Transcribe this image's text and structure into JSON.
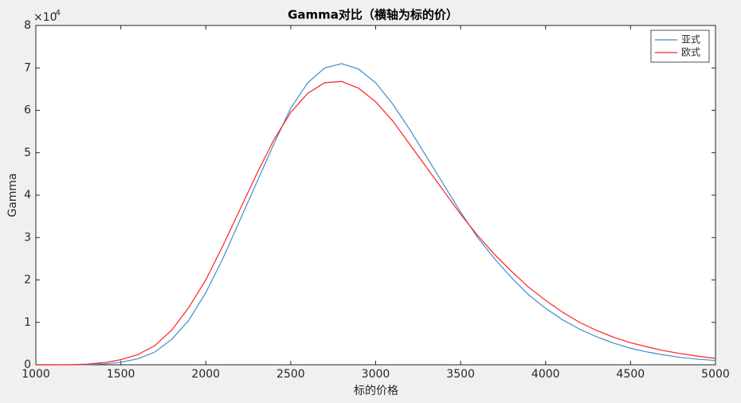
{
  "chart_data": {
    "type": "line",
    "title": "Gamma对比（横轴为标的价）",
    "x_label": "标的价格",
    "y_label": "Gamma",
    "y_exponent_base": "×10",
    "y_exponent_power": "-4",
    "x": [
      1000,
      1100,
      1200,
      1300,
      1400,
      1500,
      1600,
      1700,
      1800,
      1900,
      2000,
      2100,
      2200,
      2300,
      2400,
      2500,
      2600,
      2700,
      2800,
      2900,
      3000,
      3100,
      3200,
      3300,
      3400,
      3500,
      3600,
      3700,
      3800,
      3900,
      4000,
      4100,
      4200,
      4300,
      4400,
      4500,
      4600,
      4700,
      4800,
      4900,
      5000
    ],
    "series": [
      {
        "name": "亚式",
        "color": "#3b8fd0",
        "values": [
          0,
          0,
          0,
          0.005,
          0.02,
          0.06,
          0.14,
          0.3,
          0.6,
          1.05,
          1.7,
          2.5,
          3.4,
          4.3,
          5.2,
          6.05,
          6.65,
          7.0,
          7.1,
          6.97,
          6.65,
          6.15,
          5.55,
          4.9,
          4.25,
          3.6,
          3.0,
          2.5,
          2.05,
          1.65,
          1.33,
          1.06,
          0.84,
          0.66,
          0.51,
          0.39,
          0.3,
          0.23,
          0.17,
          0.13,
          0.1
        ]
      },
      {
        "name": "欧式",
        "color": "#ff2020",
        "values": [
          0,
          0,
          0.002,
          0.015,
          0.05,
          0.12,
          0.24,
          0.45,
          0.82,
          1.35,
          2.0,
          2.8,
          3.65,
          4.5,
          5.3,
          5.95,
          6.4,
          6.65,
          6.68,
          6.52,
          6.2,
          5.75,
          5.2,
          4.65,
          4.1,
          3.55,
          3.05,
          2.6,
          2.2,
          1.83,
          1.52,
          1.24,
          1.0,
          0.81,
          0.65,
          0.52,
          0.42,
          0.33,
          0.26,
          0.2,
          0.15
        ]
      }
    ],
    "xlim": [
      1000,
      5000
    ],
    "ylim": [
      0,
      8
    ],
    "xticks": [
      1000,
      1500,
      2000,
      2500,
      3000,
      3500,
      4000,
      4500,
      5000
    ],
    "yticks": [
      0,
      1,
      2,
      3,
      4,
      5,
      6,
      7,
      8
    ],
    "legend": "top-right"
  }
}
